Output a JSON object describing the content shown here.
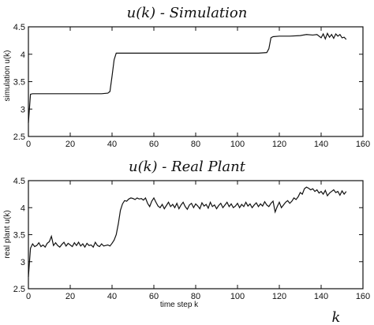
{
  "chart_data": [
    {
      "type": "line",
      "title": "u(k)  -  Simulation",
      "xlabel": "",
      "ylabel": "simulation u(k)",
      "xlim": [
        0,
        160
      ],
      "ylim": [
        2.5,
        4.5
      ],
      "xticks": [
        0,
        20,
        40,
        60,
        80,
        100,
        120,
        140,
        160
      ],
      "yticks": [
        2.5,
        3,
        3.5,
        4,
        4.5
      ],
      "xtick_labels": [
        "0",
        "20",
        "40",
        "60",
        "80",
        "100",
        "120",
        "140",
        "160"
      ],
      "ytick_labels": [
        "2.5",
        "3",
        "3.5",
        "4",
        "4.5"
      ],
      "grid": false,
      "series": [
        {
          "points": [
            [
              0,
              2.75
            ],
            [
              1,
              3.27
            ],
            [
              2,
              3.28
            ],
            [
              5,
              3.28
            ],
            [
              10,
              3.28
            ],
            [
              15,
              3.28
            ],
            [
              20,
              3.28
            ],
            [
              25,
              3.28
            ],
            [
              30,
              3.28
            ],
            [
              35,
              3.28
            ],
            [
              38,
              3.29
            ],
            [
              39,
              3.32
            ],
            [
              40,
              3.6
            ],
            [
              41,
              3.9
            ],
            [
              42,
              4.02
            ],
            [
              45,
              4.02
            ],
            [
              50,
              4.02
            ],
            [
              55,
              4.02
            ],
            [
              60,
              4.02
            ],
            [
              70,
              4.02
            ],
            [
              80,
              4.02
            ],
            [
              90,
              4.02
            ],
            [
              100,
              4.02
            ],
            [
              110,
              4.02
            ],
            [
              114,
              4.03
            ],
            [
              115,
              4.1
            ],
            [
              116,
              4.3
            ],
            [
              117,
              4.32
            ],
            [
              120,
              4.33
            ],
            [
              125,
              4.33
            ],
            [
              130,
              4.34
            ],
            [
              133,
              4.36
            ],
            [
              136,
              4.35
            ],
            [
              138,
              4.36
            ],
            [
              140,
              4.3
            ],
            [
              141,
              4.37
            ],
            [
              142,
              4.28
            ],
            [
              143,
              4.38
            ],
            [
              144,
              4.31
            ],
            [
              145,
              4.36
            ],
            [
              146,
              4.29
            ],
            [
              147,
              4.37
            ],
            [
              148,
              4.33
            ],
            [
              149,
              4.36
            ],
            [
              150,
              4.3
            ],
            [
              151,
              4.31
            ],
            [
              152,
              4.27
            ]
          ]
        }
      ]
    },
    {
      "type": "line",
      "title": "u(k)  -  Real Plant",
      "xlabel": "time step k",
      "ylabel": "real plant u(k)",
      "xlim": [
        0,
        160
      ],
      "ylim": [
        2.5,
        4.5
      ],
      "xticks": [
        0,
        20,
        40,
        60,
        80,
        100,
        120,
        140,
        160
      ],
      "yticks": [
        2.5,
        3,
        3.5,
        4,
        4.5
      ],
      "xtick_labels": [
        "0",
        "20",
        "40",
        "60",
        "80",
        "100",
        "120",
        "140",
        "160"
      ],
      "ytick_labels": [
        "2.5",
        "3",
        "3.5",
        "4",
        "4.5"
      ],
      "grid": false,
      "series": [
        {
          "points": [
            [
              0,
              2.72
            ],
            [
              1,
              3.25
            ],
            [
              2,
              3.33
            ],
            [
              3,
              3.28
            ],
            [
              4,
              3.3
            ],
            [
              5,
              3.35
            ],
            [
              6,
              3.28
            ],
            [
              7,
              3.31
            ],
            [
              8,
              3.27
            ],
            [
              9,
              3.34
            ],
            [
              10,
              3.37
            ],
            [
              11,
              3.47
            ],
            [
              12,
              3.3
            ],
            [
              13,
              3.35
            ],
            [
              14,
              3.3
            ],
            [
              15,
              3.27
            ],
            [
              16,
              3.32
            ],
            [
              17,
              3.36
            ],
            [
              18,
              3.29
            ],
            [
              19,
              3.34
            ],
            [
              20,
              3.31
            ],
            [
              21,
              3.28
            ],
            [
              22,
              3.35
            ],
            [
              23,
              3.3
            ],
            [
              24,
              3.36
            ],
            [
              25,
              3.29
            ],
            [
              26,
              3.33
            ],
            [
              27,
              3.27
            ],
            [
              28,
              3.34
            ],
            [
              29,
              3.3
            ],
            [
              30,
              3.31
            ],
            [
              31,
              3.27
            ],
            [
              32,
              3.36
            ],
            [
              33,
              3.3
            ],
            [
              34,
              3.28
            ],
            [
              35,
              3.33
            ],
            [
              36,
              3.29
            ],
            [
              37,
              3.3
            ],
            [
              38,
              3.31
            ],
            [
              39,
              3.29
            ],
            [
              40,
              3.34
            ],
            [
              41,
              3.4
            ],
            [
              42,
              3.5
            ],
            [
              43,
              3.7
            ],
            [
              44,
              3.95
            ],
            [
              45,
              4.07
            ],
            [
              46,
              4.13
            ],
            [
              47,
              4.12
            ],
            [
              48,
              4.16
            ],
            [
              49,
              4.18
            ],
            [
              50,
              4.17
            ],
            [
              51,
              4.15
            ],
            [
              52,
              4.18
            ],
            [
              53,
              4.16
            ],
            [
              54,
              4.17
            ],
            [
              55,
              4.14
            ],
            [
              56,
              4.18
            ],
            [
              57,
              4.08
            ],
            [
              58,
              4.02
            ],
            [
              59,
              4.12
            ],
            [
              60,
              4.18
            ],
            [
              61,
              4.1
            ],
            [
              62,
              4.03
            ],
            [
              63,
              4.0
            ],
            [
              64,
              4.06
            ],
            [
              65,
              3.98
            ],
            [
              66,
              4.04
            ],
            [
              67,
              4.1
            ],
            [
              68,
              4.02
            ],
            [
              69,
              4.06
            ],
            [
              70,
              4.0
            ],
            [
              71,
              4.08
            ],
            [
              72,
              3.98
            ],
            [
              73,
              4.05
            ],
            [
              74,
              4.1
            ],
            [
              75,
              4.02
            ],
            [
              76,
              3.97
            ],
            [
              77,
              4.05
            ],
            [
              78,
              4.08
            ],
            [
              79,
              4.0
            ],
            [
              80,
              4.07
            ],
            [
              81,
              4.03
            ],
            [
              82,
              3.98
            ],
            [
              83,
              4.09
            ],
            [
              84,
              4.03
            ],
            [
              85,
              4.06
            ],
            [
              86,
              3.99
            ],
            [
              87,
              4.1
            ],
            [
              88,
              4.02
            ],
            [
              89,
              4.05
            ],
            [
              90,
              3.98
            ],
            [
              91,
              4.04
            ],
            [
              92,
              4.08
            ],
            [
              93,
              4.0
            ],
            [
              94,
              4.05
            ],
            [
              95,
              4.1
            ],
            [
              96,
              4.02
            ],
            [
              97,
              4.07
            ],
            [
              98,
              4.0
            ],
            [
              99,
              4.03
            ],
            [
              100,
              4.08
            ],
            [
              101,
              4.0
            ],
            [
              102,
              4.06
            ],
            [
              103,
              4.02
            ],
            [
              104,
              4.1
            ],
            [
              105,
              4.03
            ],
            [
              106,
              4.07
            ],
            [
              107,
              4.0
            ],
            [
              108,
              4.05
            ],
            [
              109,
              4.09
            ],
            [
              110,
              4.02
            ],
            [
              111,
              4.07
            ],
            [
              112,
              4.03
            ],
            [
              113,
              4.11
            ],
            [
              114,
              4.05
            ],
            [
              115,
              4.02
            ],
            [
              116,
              4.08
            ],
            [
              117,
              4.12
            ],
            [
              118,
              3.92
            ],
            [
              119,
              4.02
            ],
            [
              120,
              4.1
            ],
            [
              121,
              4.0
            ],
            [
              122,
              4.05
            ],
            [
              123,
              4.1
            ],
            [
              124,
              4.13
            ],
            [
              125,
              4.08
            ],
            [
              126,
              4.12
            ],
            [
              127,
              4.18
            ],
            [
              128,
              4.15
            ],
            [
              129,
              4.2
            ],
            [
              130,
              4.28
            ],
            [
              131,
              4.25
            ],
            [
              132,
              4.35
            ],
            [
              133,
              4.38
            ],
            [
              134,
              4.36
            ],
            [
              135,
              4.33
            ],
            [
              136,
              4.35
            ],
            [
              137,
              4.3
            ],
            [
              138,
              4.33
            ],
            [
              139,
              4.27
            ],
            [
              140,
              4.3
            ],
            [
              141,
              4.25
            ],
            [
              142,
              4.32
            ],
            [
              143,
              4.22
            ],
            [
              144,
              4.27
            ],
            [
              145,
              4.3
            ],
            [
              146,
              4.33
            ],
            [
              147,
              4.28
            ],
            [
              148,
              4.3
            ],
            [
              149,
              4.23
            ],
            [
              150,
              4.31
            ],
            [
              151,
              4.25
            ],
            [
              152,
              4.3
            ]
          ]
        }
      ]
    }
  ],
  "footer": {
    "axis_symbol": "k"
  },
  "colors": {
    "line": "#111111",
    "axes": "#111111",
    "background": "#ffffff"
  }
}
